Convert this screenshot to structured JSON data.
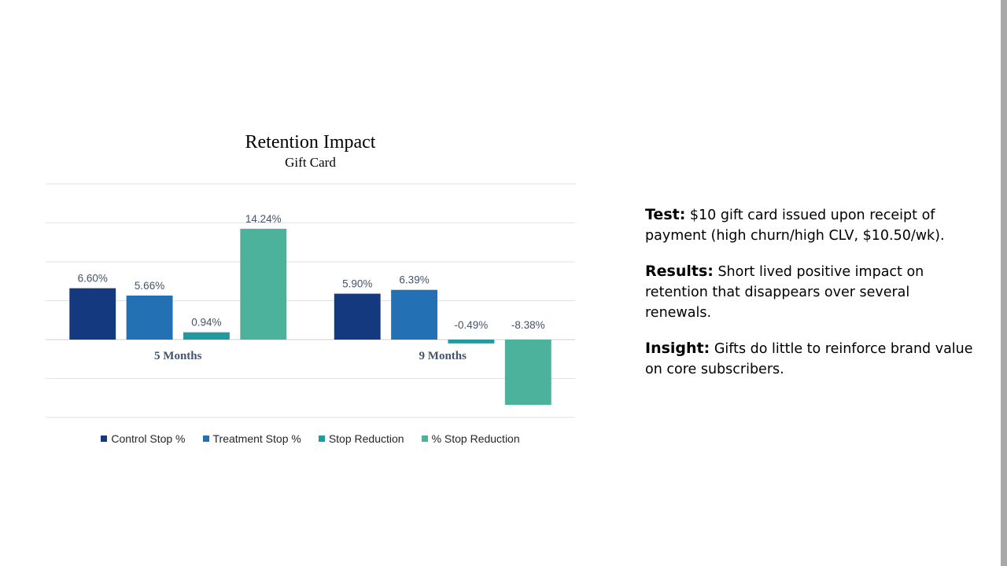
{
  "chart_data": {
    "type": "bar",
    "title": "Retention Impact",
    "subtitle": "Gift Card",
    "categories": [
      "5 Months",
      "9 Months"
    ],
    "series": [
      {
        "name": "Control Stop %",
        "values": [
          6.6,
          5.9
        ],
        "labels": [
          "6.60%",
          "5.90%"
        ],
        "color": "#15397e"
      },
      {
        "name": "Treatment Stop %",
        "values": [
          5.66,
          6.39
        ],
        "labels": [
          "5.66%",
          "6.39%"
        ],
        "color": "#2370b4"
      },
      {
        "name": "Stop Reduction",
        "values": [
          0.94,
          -0.49
        ],
        "labels": [
          "0.94%",
          "-0.49%"
        ],
        "color": "#2199a1"
      },
      {
        "name": "% Stop Reduction",
        "values": [
          14.24,
          -8.38
        ],
        "labels": [
          "14.24%",
          "-8.38%"
        ],
        "color": "#4db29c"
      }
    ],
    "ylim": [
      -10,
      20
    ],
    "y_gridline_step": 5,
    "grid": true,
    "legend_position": "bottom"
  },
  "notes": [
    {
      "head": "Test:",
      "text": "$10 gift card issued upon receipt of payment (high churn/high CLV, $10.50/wk)."
    },
    {
      "head": "Results:",
      "text": "Short lived positive impact on retention that disappears over several renewals."
    },
    {
      "head": "Insight:",
      "text": "Gifts do little to reinforce brand value on core subscribers."
    }
  ]
}
